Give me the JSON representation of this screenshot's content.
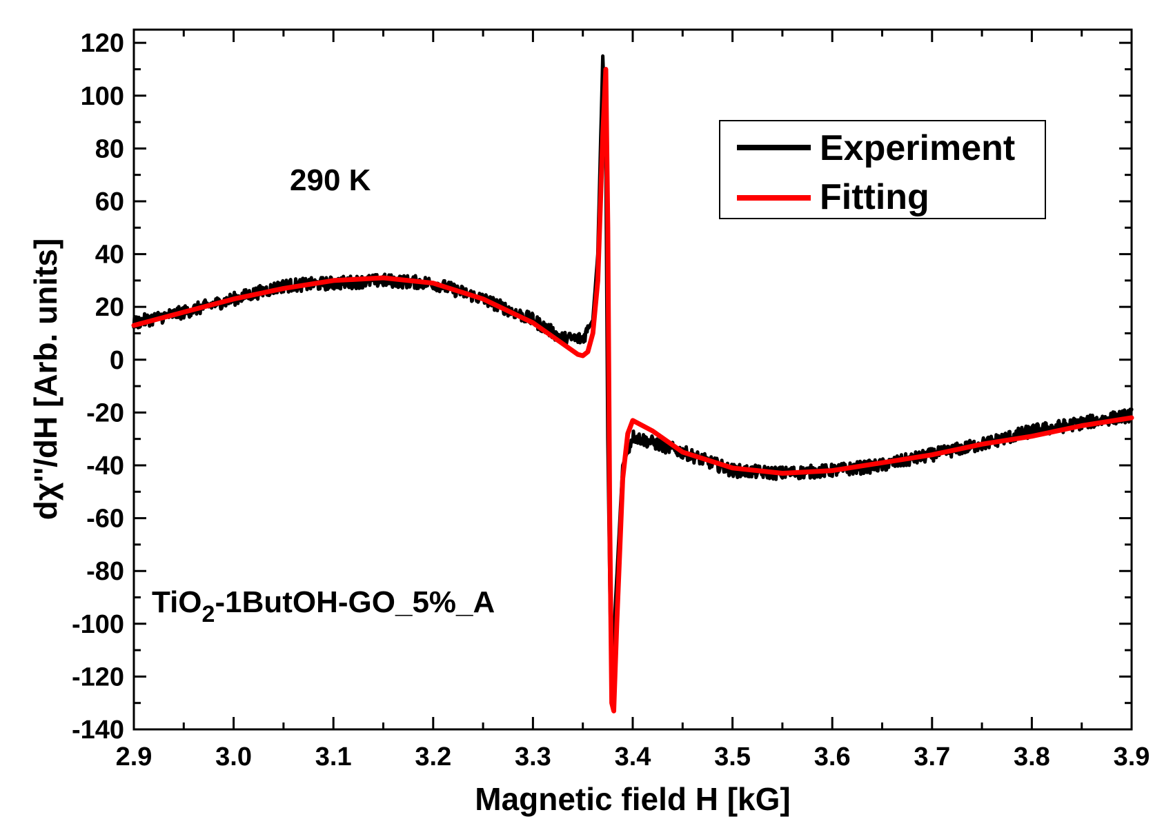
{
  "chart_data": {
    "type": "line",
    "title": "",
    "xlabel": "Magnetic field H [kG]",
    "ylabel": "dχ''/dH [Arb. units]",
    "xlim": [
      2.9,
      3.9
    ],
    "ylim": [
      -140,
      125
    ],
    "xticks": [
      "2.9",
      "3.0",
      "3.1",
      "3.2",
      "3.3",
      "3.4",
      "3.5",
      "3.6",
      "3.7",
      "3.8",
      "3.9"
    ],
    "yticks": [
      "120",
      "100",
      "80",
      "60",
      "40",
      "20",
      "0",
      "-20",
      "-40",
      "-60",
      "-80",
      "-100",
      "-120",
      "-140"
    ],
    "annotations": {
      "temperature": "290 K",
      "sample_prefix": "TiO",
      "sample_subscript": "2",
      "sample_suffix": "-1ButOH-GO_5%_A"
    },
    "legend": {
      "position": "top-right",
      "entries": [
        "Experiment",
        "Fitting"
      ]
    },
    "series": [
      {
        "name": "Experiment",
        "color": "#000000",
        "noisy": true,
        "x": [
          2.9,
          2.95,
          3.0,
          3.05,
          3.1,
          3.15,
          3.2,
          3.25,
          3.3,
          3.33,
          3.35,
          3.36,
          3.365,
          3.37,
          3.373,
          3.375,
          3.378,
          3.38,
          3.383,
          3.39,
          3.4,
          3.45,
          3.5,
          3.55,
          3.6,
          3.65,
          3.7,
          3.75,
          3.8,
          3.85,
          3.9
        ],
        "y": [
          14,
          18,
          23,
          28,
          29,
          30,
          29,
          23,
          15,
          8,
          8,
          15,
          40,
          115,
          80,
          -30,
          -110,
          -112,
          -90,
          -40,
          -29,
          -35,
          -42,
          -43,
          -42,
          -40,
          -36,
          -32,
          -27,
          -24,
          -21
        ]
      },
      {
        "name": "Fitting",
        "color": "#ff0000",
        "noisy": false,
        "x": [
          2.9,
          2.95,
          3.0,
          3.05,
          3.1,
          3.15,
          3.2,
          3.25,
          3.3,
          3.33,
          3.345,
          3.35,
          3.355,
          3.36,
          3.365,
          3.37,
          3.373,
          3.375,
          3.377,
          3.379,
          3.381,
          3.384,
          3.39,
          3.395,
          3.4,
          3.42,
          3.45,
          3.5,
          3.55,
          3.6,
          3.65,
          3.7,
          3.75,
          3.8,
          3.85,
          3.9
        ],
        "y": [
          13,
          18,
          23,
          27,
          30,
          31,
          29,
          23,
          14,
          6,
          2,
          1.5,
          3,
          10,
          30,
          85,
          110,
          50,
          -60,
          -130,
          -133,
          -100,
          -45,
          -28,
          -23,
          -27,
          -35,
          -41,
          -43,
          -42,
          -39,
          -36,
          -32,
          -29,
          -25,
          -22
        ]
      }
    ]
  }
}
